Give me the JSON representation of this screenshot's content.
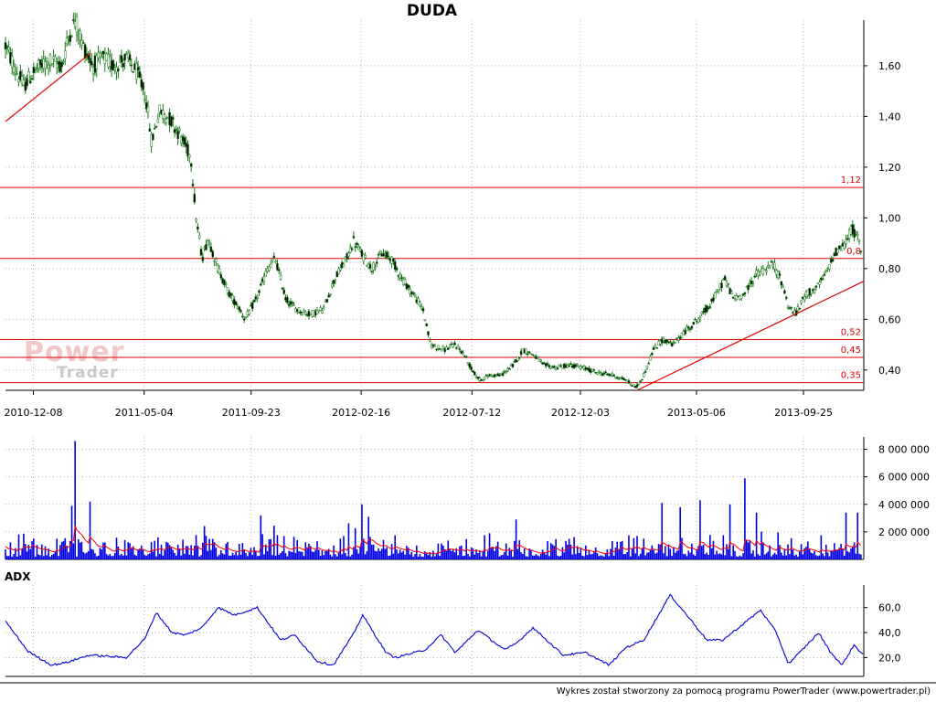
{
  "title": "DUDA",
  "footer": "Wykres został stworzony za pomocą programu PowerTrader (www.powertrader.pl)",
  "watermark": {
    "line1": "Power",
    "line2": "Trader"
  },
  "chart_data": [
    {
      "type": "line",
      "name": "price",
      "title": "DUDA",
      "ylim": [
        0.32,
        1.78
      ],
      "y_ticks": [
        "1,60",
        "1,40",
        "1,20",
        "1,00",
        "0,80",
        "0,60",
        "0,40"
      ],
      "y_tick_values": [
        1.6,
        1.4,
        1.2,
        1.0,
        0.8,
        0.6,
        0.4
      ],
      "x_ticks": [
        "2010-12-08",
        "2011-05-04",
        "2011-09-23",
        "2012-02-16",
        "2012-07-12",
        "2012-12-03",
        "2013-05-06",
        "2013-09-25"
      ],
      "x_tick_dates": [
        "2010-12-08",
        "2011-05-04",
        "2011-09-23",
        "2012-02-16",
        "2012-07-12",
        "2012-12-03",
        "2013-05-06",
        "2013-09-25"
      ],
      "grid": true,
      "anchors": [
        [
          "2010-11-01",
          1.68
        ],
        [
          "2010-11-12",
          1.6
        ],
        [
          "2010-11-25",
          1.52
        ],
        [
          "2010-12-10",
          1.58
        ],
        [
          "2010-12-28",
          1.62
        ],
        [
          "2011-01-15",
          1.6
        ],
        [
          "2011-01-24",
          1.72
        ],
        [
          "2011-02-02",
          1.78
        ],
        [
          "2011-02-12",
          1.68
        ],
        [
          "2011-02-25",
          1.6
        ],
        [
          "2011-03-10",
          1.63
        ],
        [
          "2011-03-25",
          1.6
        ],
        [
          "2011-04-10",
          1.63
        ],
        [
          "2011-04-25",
          1.57
        ],
        [
          "2011-05-06",
          1.48
        ],
        [
          "2011-05-14",
          1.3
        ],
        [
          "2011-05-24",
          1.42
        ],
        [
          "2011-06-05",
          1.4
        ],
        [
          "2011-06-20",
          1.33
        ],
        [
          "2011-07-05",
          1.24
        ],
        [
          "2011-07-12",
          1.0
        ],
        [
          "2011-07-20",
          0.84
        ],
        [
          "2011-07-28",
          0.92
        ],
        [
          "2011-08-10",
          0.8
        ],
        [
          "2011-08-25",
          0.7
        ],
        [
          "2011-09-08",
          0.64
        ],
        [
          "2011-09-15",
          0.6
        ],
        [
          "2011-09-30",
          0.68
        ],
        [
          "2011-10-15",
          0.8
        ],
        [
          "2011-10-25",
          0.84
        ],
        [
          "2011-11-08",
          0.68
        ],
        [
          "2011-11-22",
          0.64
        ],
        [
          "2011-12-10",
          0.62
        ],
        [
          "2011-12-28",
          0.64
        ],
        [
          "2012-01-12",
          0.76
        ],
        [
          "2012-01-28",
          0.84
        ],
        [
          "2012-02-06",
          0.91
        ],
        [
          "2012-02-16",
          0.86
        ],
        [
          "2012-03-01",
          0.8
        ],
        [
          "2012-03-15",
          0.86
        ],
        [
          "2012-03-27",
          0.84
        ],
        [
          "2012-04-10",
          0.76
        ],
        [
          "2012-04-25",
          0.7
        ],
        [
          "2012-05-08",
          0.64
        ],
        [
          "2012-05-18",
          0.5
        ],
        [
          "2012-06-05",
          0.48
        ],
        [
          "2012-06-20",
          0.5
        ],
        [
          "2012-07-02",
          0.46
        ],
        [
          "2012-07-12",
          0.4
        ],
        [
          "2012-07-22",
          0.36
        ],
        [
          "2012-08-05",
          0.38
        ],
        [
          "2012-08-20",
          0.38
        ],
        [
          "2012-09-05",
          0.42
        ],
        [
          "2012-09-18",
          0.48
        ],
        [
          "2012-10-02",
          0.46
        ],
        [
          "2012-10-15",
          0.42
        ],
        [
          "2012-11-01",
          0.41
        ],
        [
          "2012-11-20",
          0.42
        ],
        [
          "2012-12-05",
          0.41
        ],
        [
          "2012-12-25",
          0.39
        ],
        [
          "2013-01-15",
          0.38
        ],
        [
          "2013-02-01",
          0.36
        ],
        [
          "2013-02-15",
          0.33
        ],
        [
          "2013-02-25",
          0.38
        ],
        [
          "2013-03-10",
          0.48
        ],
        [
          "2013-03-22",
          0.52
        ],
        [
          "2013-04-05",
          0.5
        ],
        [
          "2013-04-20",
          0.55
        ],
        [
          "2013-05-08",
          0.6
        ],
        [
          "2013-05-25",
          0.66
        ],
        [
          "2013-06-05",
          0.72
        ],
        [
          "2013-06-12",
          0.76
        ],
        [
          "2013-06-25",
          0.68
        ],
        [
          "2013-07-08",
          0.7
        ],
        [
          "2013-07-25",
          0.78
        ],
        [
          "2013-08-08",
          0.8
        ],
        [
          "2013-08-16",
          0.82
        ],
        [
          "2013-08-28",
          0.74
        ],
        [
          "2013-09-05",
          0.65
        ],
        [
          "2013-09-15",
          0.62
        ],
        [
          "2013-09-28",
          0.7
        ],
        [
          "2013-10-12",
          0.72
        ],
        [
          "2013-10-25",
          0.78
        ],
        [
          "2013-11-05",
          0.86
        ],
        [
          "2013-11-20",
          0.9
        ],
        [
          "2013-11-28",
          0.96
        ],
        [
          "2013-12-06",
          0.92
        ],
        [
          "2013-12-12",
          0.86
        ]
      ],
      "horizontal_lines": [
        {
          "value": 1.12,
          "label": "1,12"
        },
        {
          "value": 0.84,
          "label": "0,8"
        },
        {
          "value": 0.52,
          "label": "0,52"
        },
        {
          "value": 0.45,
          "label": "0,45"
        },
        {
          "value": 0.35,
          "label": "0,35"
        }
      ],
      "trendlines": [
        {
          "from": [
            "2010-11-01",
            1.38
          ],
          "to": [
            "2011-02-22",
            1.65
          ]
        },
        {
          "from": [
            "2013-02-16",
            0.32
          ],
          "to": [
            "2013-12-14",
            0.75
          ]
        }
      ],
      "colors": {
        "candle": "#1a7a1a",
        "support": "#e00000",
        "grid": "#b0b0b0"
      }
    },
    {
      "type": "bar",
      "name": "volume",
      "y_ticks": [
        "8 000 000",
        "6 000 000",
        "4 000 000",
        "2 000 000"
      ],
      "y_tick_values": [
        8000000,
        6000000,
        4000000,
        2000000
      ],
      "ylim": [
        0,
        8900000
      ],
      "spikes": [
        [
          "2011-02-01",
          8600000
        ],
        [
          "2011-02-20",
          4200000
        ],
        [
          "2011-01-28",
          3900000
        ],
        [
          "2011-10-05",
          3200000
        ],
        [
          "2012-02-16",
          4000000
        ],
        [
          "2012-02-26",
          3100000
        ],
        [
          "2012-09-08",
          2900000
        ],
        [
          "2013-03-20",
          4100000
        ],
        [
          "2013-04-15",
          3800000
        ],
        [
          "2013-05-10",
          4300000
        ],
        [
          "2013-06-20",
          4000000
        ],
        [
          "2013-07-10",
          5900000
        ],
        [
          "2013-07-25",
          3400000
        ],
        [
          "2013-11-20",
          3400000
        ],
        [
          "2013-12-05",
          3400000
        ]
      ],
      "colors": {
        "bars": "#0000e6",
        "average": "#ff0000"
      }
    },
    {
      "type": "line",
      "name": "ADX",
      "label": "ADX",
      "y_ticks": [
        "60,0",
        "40,0",
        "20,0"
      ],
      "y_tick_values": [
        60,
        40,
        20
      ],
      "ylim": [
        5,
        78
      ],
      "anchors": [
        [
          "2010-11-01",
          49
        ],
        [
          "2010-12-01",
          25
        ],
        [
          "2011-01-01",
          14
        ],
        [
          "2011-01-20",
          16
        ],
        [
          "2011-02-20",
          22
        ],
        [
          "2011-04-10",
          20
        ],
        [
          "2011-05-05",
          35
        ],
        [
          "2011-05-20",
          56
        ],
        [
          "2011-06-10",
          40
        ],
        [
          "2011-06-28",
          38
        ],
        [
          "2011-07-20",
          44
        ],
        [
          "2011-08-10",
          60
        ],
        [
          "2011-09-01",
          54
        ],
        [
          "2011-10-01",
          60
        ],
        [
          "2011-11-01",
          34
        ],
        [
          "2011-11-20",
          38
        ],
        [
          "2011-12-20",
          17
        ],
        [
          "2012-01-10",
          14
        ],
        [
          "2012-02-05",
          38
        ],
        [
          "2012-02-18",
          54
        ],
        [
          "2012-03-20",
          24
        ],
        [
          "2012-04-01",
          20
        ],
        [
          "2012-05-10",
          26
        ],
        [
          "2012-06-01",
          38
        ],
        [
          "2012-06-20",
          24
        ],
        [
          "2012-07-20",
          42
        ],
        [
          "2012-08-25",
          26
        ],
        [
          "2012-09-10",
          32
        ],
        [
          "2012-10-01",
          44
        ],
        [
          "2012-11-10",
          22
        ],
        [
          "2012-12-10",
          24
        ],
        [
          "2013-01-10",
          14
        ],
        [
          "2013-02-01",
          28
        ],
        [
          "2013-02-25",
          34
        ],
        [
          "2013-04-01",
          70
        ],
        [
          "2013-04-15",
          60
        ],
        [
          "2013-05-20",
          34
        ],
        [
          "2013-06-10",
          34
        ],
        [
          "2013-07-01",
          44
        ],
        [
          "2013-07-30",
          58
        ],
        [
          "2013-08-20",
          40
        ],
        [
          "2013-09-05",
          15
        ],
        [
          "2013-09-20",
          24
        ],
        [
          "2013-10-15",
          40
        ],
        [
          "2013-10-30",
          25
        ],
        [
          "2013-11-15",
          14
        ],
        [
          "2013-12-01",
          30
        ],
        [
          "2013-12-14",
          22
        ]
      ],
      "colors": {
        "line": "#0000dd"
      }
    }
  ]
}
